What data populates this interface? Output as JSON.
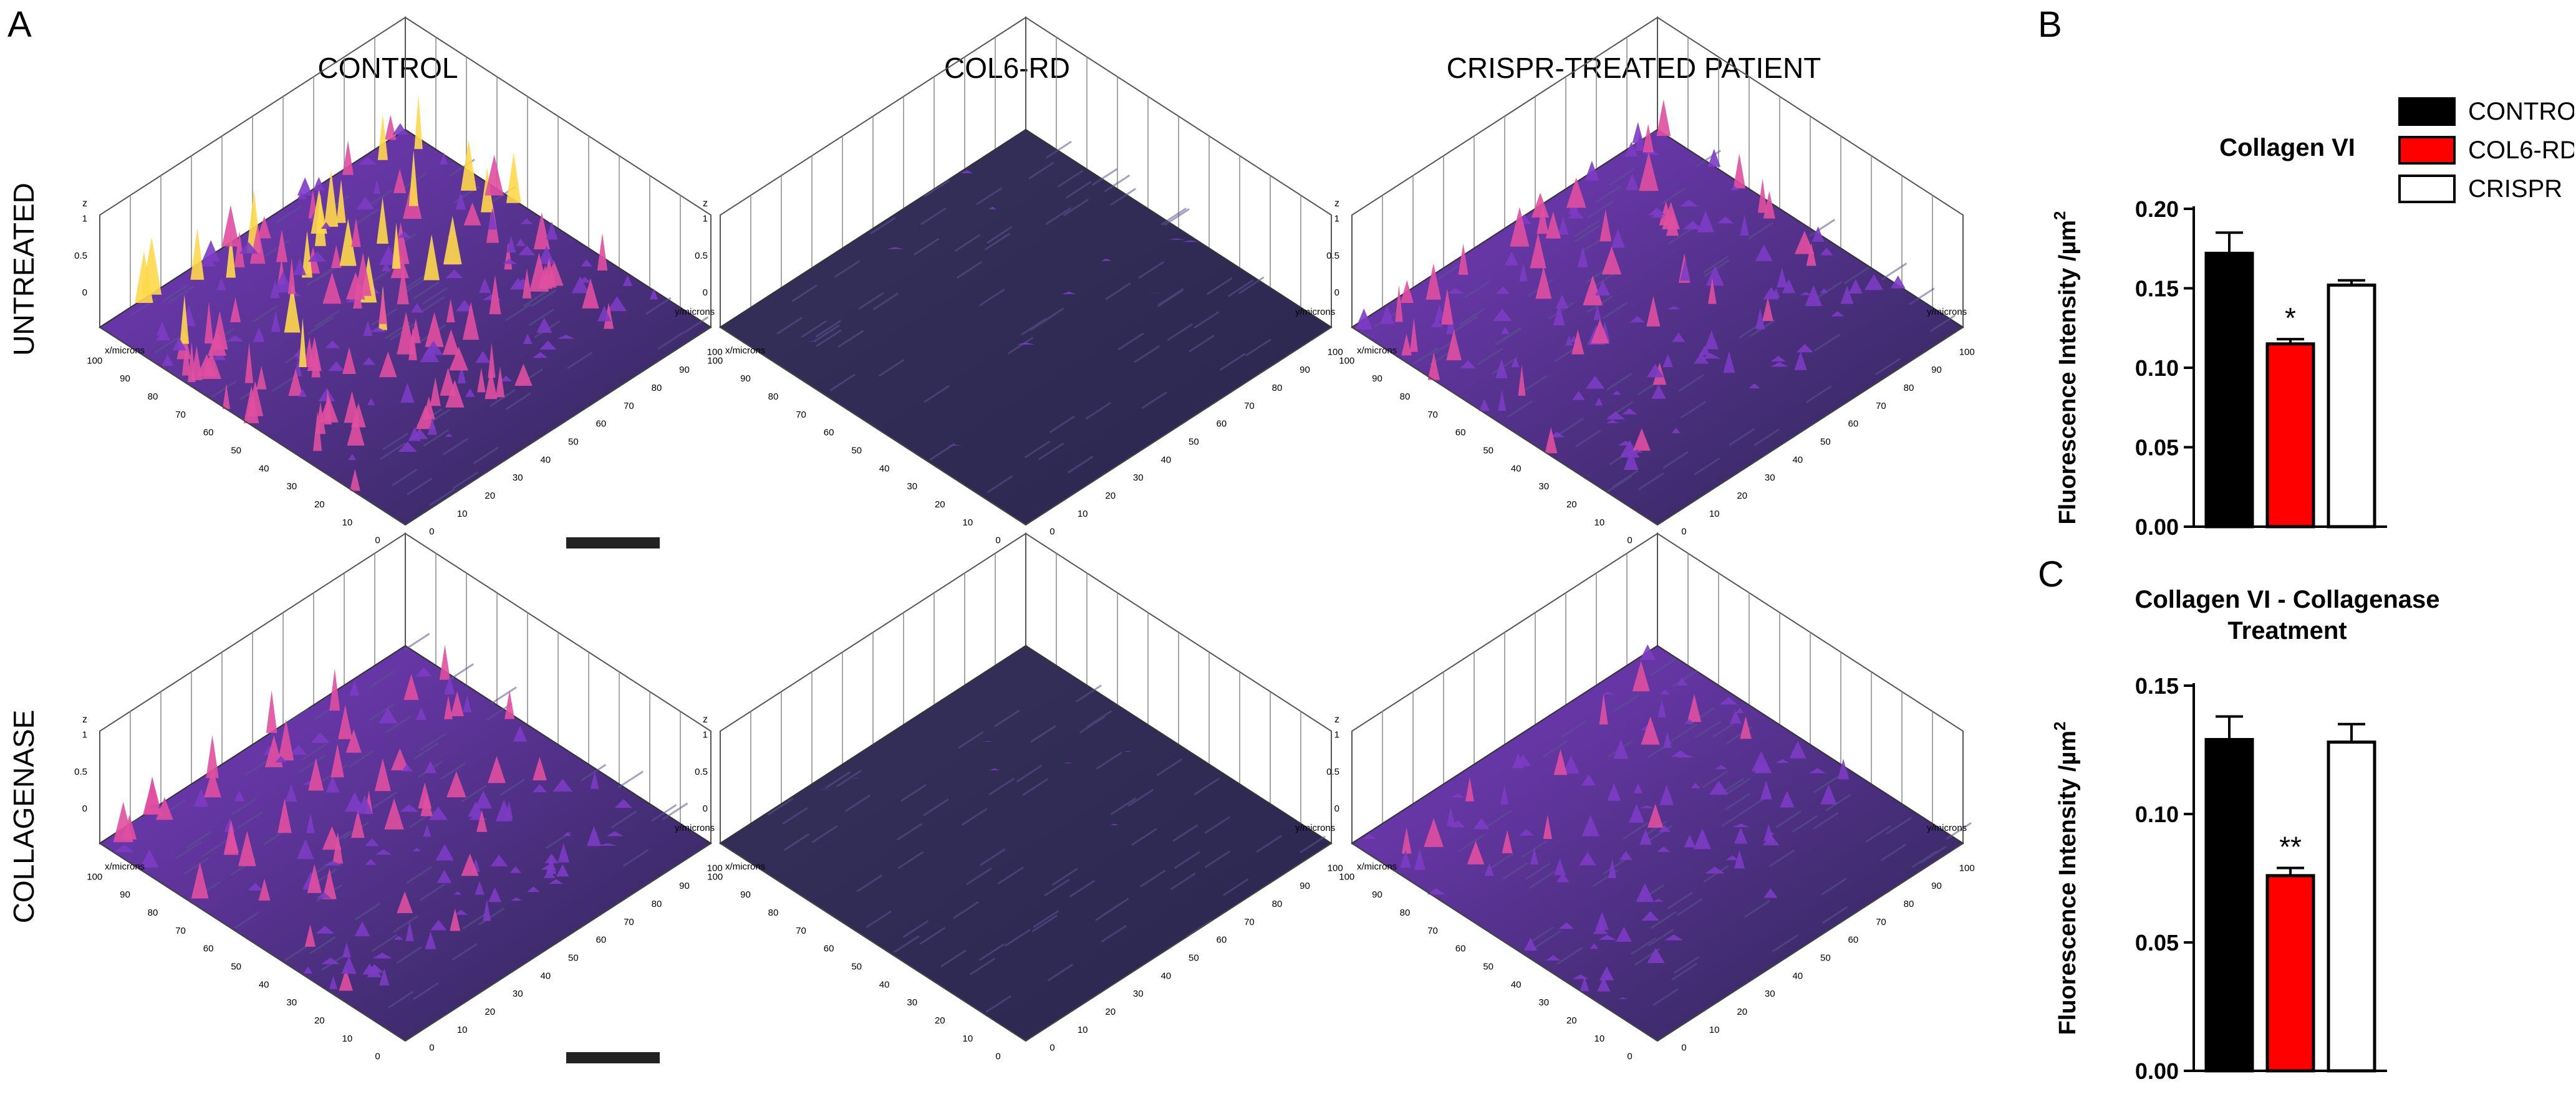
{
  "panels": {
    "a": "A",
    "b": "B",
    "c": "C"
  },
  "columns": [
    "CONTROL",
    "COL6-RD",
    "CRISPR-TREATED PATIENT"
  ],
  "rows": [
    "UNTREATED",
    "COLLAGENASE"
  ],
  "surface_axes": {
    "z_label": "z",
    "z_ticks": [
      "1",
      "0.5",
      "0"
    ],
    "x_label": "x/microns",
    "y_label": "y/microns",
    "x_ticks": [
      "100",
      "90",
      "80",
      "70",
      "60",
      "50",
      "40",
      "30",
      "20",
      "10",
      "0"
    ],
    "y_ticks": [
      "0",
      "10",
      "20",
      "30",
      "40",
      "50",
      "60",
      "70",
      "80",
      "90",
      "100"
    ]
  },
  "surface_colors": {
    "low": "#2a2650",
    "mid": "#7c3cc4",
    "high": "#e04fa0",
    "peak": "#ffd84a"
  },
  "surface_intensity": [
    [
      0.9,
      0.05,
      0.6
    ],
    [
      0.6,
      0.03,
      0.45
    ]
  ],
  "chart_data": [
    {
      "type": "bar",
      "title": "Collagen VI",
      "ylabel": "Fluorescence Intensity /µm",
      "ylabel_sup": "2",
      "categories": [
        "CONTROL",
        "COL6-RD",
        "CRISPR"
      ],
      "values": [
        0.172,
        0.115,
        0.152
      ],
      "errors": [
        0.013,
        0.003,
        0.003
      ],
      "colors": [
        "#000000",
        "#ff0000",
        "#ffffff"
      ],
      "annotations": [
        "",
        "*",
        ""
      ],
      "ylim": [
        0,
        0.2
      ],
      "yticks": [
        "0.00",
        "0.05",
        "0.10",
        "0.15",
        "0.20"
      ],
      "legend": [
        "CONTROL",
        "COL6-RD",
        "CRISPR"
      ]
    },
    {
      "type": "bar",
      "title": "Collagen VI - Collagenase",
      "title_line2": "Treatment",
      "ylabel": "Fluorescence Intensity /µm",
      "ylabel_sup": "2",
      "categories": [
        "CONTROL",
        "COL6-RD",
        "CRISPR"
      ],
      "values": [
        0.129,
        0.076,
        0.128
      ],
      "errors": [
        0.009,
        0.003,
        0.007
      ],
      "colors": [
        "#000000",
        "#ff0000",
        "#ffffff"
      ],
      "annotations": [
        "",
        "**",
        ""
      ],
      "ylim": [
        0,
        0.15
      ],
      "yticks": [
        "0.00",
        "0.05",
        "0.10",
        "0.15"
      ]
    }
  ]
}
